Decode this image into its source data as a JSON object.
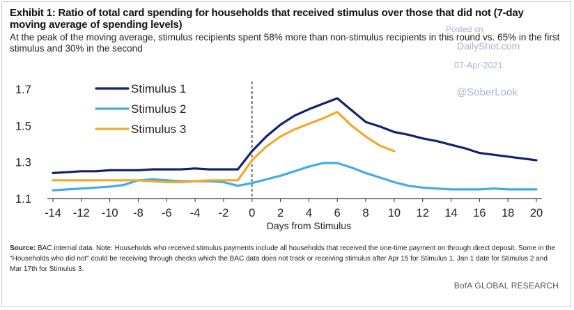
{
  "header": {
    "title": "Exhibit 1: Ratio of total card spending for households that received stimulus over those that did not (7-day moving average of spending levels)",
    "subtitle": "At the peak of the moving average, stimulus recipients spent 58% more than non-stimulus recipients in this round vs. 65% in the first stimulus and 30% in the second"
  },
  "watermark": {
    "posted": "Posted on",
    "site": "DailyShot.com",
    "date": "07-Apr-2021",
    "handle": "@SoberLook"
  },
  "chart_data": {
    "type": "line",
    "title": "Exhibit 1: Ratio of total card spending for households that received stimulus over those that did not (7-day moving average of spending levels)",
    "xlabel": "Days from Stimulus",
    "ylabel": "",
    "xlim": [
      -14,
      20
    ],
    "ylim": [
      1.1,
      1.7
    ],
    "x_ticks": [
      -14,
      -12,
      -10,
      -8,
      -6,
      -4,
      -2,
      0,
      2,
      4,
      6,
      8,
      10,
      12,
      14,
      16,
      18,
      20
    ],
    "y_ticks": [
      1.1,
      1.3,
      1.5,
      1.7
    ],
    "y_tick_labels": [
      "1.1",
      "1.3",
      "1.5",
      "1.7"
    ],
    "reference_line_x": 0,
    "legend_position": "top-left",
    "series": [
      {
        "name": "Stimulus 1",
        "color": "#14226b",
        "x": [
          -14,
          -13,
          -12,
          -11,
          -10,
          -9,
          -8,
          -7,
          -6,
          -5,
          -4,
          -3,
          -2,
          -1,
          0,
          1,
          2,
          3,
          4,
          5,
          6,
          7,
          8,
          9,
          10,
          11,
          12,
          13,
          14,
          15,
          16,
          17,
          18,
          19,
          20
        ],
        "values": [
          1.24,
          1.245,
          1.25,
          1.25,
          1.255,
          1.255,
          1.255,
          1.26,
          1.26,
          1.26,
          1.265,
          1.26,
          1.26,
          1.26,
          1.36,
          1.44,
          1.505,
          1.555,
          1.59,
          1.62,
          1.65,
          1.585,
          1.52,
          1.495,
          1.465,
          1.45,
          1.43,
          1.415,
          1.395,
          1.375,
          1.35,
          1.34,
          1.33,
          1.32,
          1.31
        ]
      },
      {
        "name": "Stimulus 2",
        "color": "#41ace6",
        "x": [
          -14,
          -13,
          -12,
          -11,
          -10,
          -9,
          -8,
          -7,
          -6,
          -5,
          -4,
          -3,
          -2,
          -1,
          0,
          1,
          2,
          3,
          4,
          5,
          6,
          7,
          8,
          9,
          10,
          11,
          12,
          13,
          14,
          15,
          16,
          17,
          18,
          19,
          20
        ],
        "values": [
          1.145,
          1.15,
          1.155,
          1.16,
          1.165,
          1.175,
          1.2,
          1.205,
          1.2,
          1.195,
          1.195,
          1.195,
          1.19,
          1.17,
          1.185,
          1.205,
          1.225,
          1.25,
          1.275,
          1.295,
          1.295,
          1.27,
          1.24,
          1.215,
          1.19,
          1.17,
          1.16,
          1.155,
          1.15,
          1.15,
          1.15,
          1.155,
          1.15,
          1.15,
          1.15
        ]
      },
      {
        "name": "Stimulus 3",
        "color": "#f3a82b",
        "x": [
          -14,
          -13,
          -12,
          -11,
          -10,
          -9,
          -8,
          -7,
          -6,
          -5,
          -4,
          -3,
          -2,
          -1,
          0,
          1,
          2,
          3,
          4,
          5,
          6,
          7,
          8,
          9,
          10
        ],
        "values": [
          1.2,
          1.2,
          1.2,
          1.2,
          1.2,
          1.2,
          1.2,
          1.195,
          1.19,
          1.19,
          1.195,
          1.2,
          1.2,
          1.2,
          1.31,
          1.385,
          1.44,
          1.48,
          1.51,
          1.54,
          1.575,
          1.5,
          1.44,
          1.39,
          1.36
        ]
      }
    ]
  },
  "footer": {
    "source_label": "Source:",
    "source_text": " BAC internal data. Note: Households who received stimulus payments include all households that received the one-time payment on through direct deposit. Some in the \"Households who did not\" could be receiving through checks which the BAC data does not track or receiving stimulus after Apr 15 for Stimulus 1, Jan 1 date for Stimulus 2 and Mar 17th for Stimulus 3.",
    "brand": "BofA GLOBAL RESEARCH"
  },
  "colors": {
    "axis": "#333333",
    "reference_line": "#222222",
    "watermark": "#a9b6c8"
  }
}
